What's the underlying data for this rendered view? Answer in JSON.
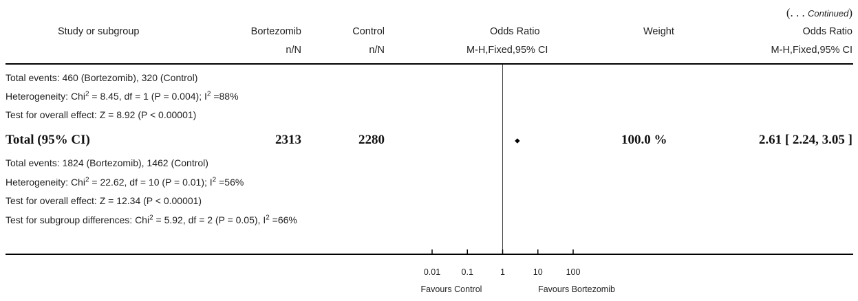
{
  "continued": {
    "open": "(. . . ",
    "text": "Continued",
    "close": ")"
  },
  "headers": {
    "study": "Study or subgroup",
    "bortezomib": "Bortezomib",
    "control": "Control",
    "odds_ratio": "Odds Ratio",
    "weight": "Weight",
    "odds_ratio_right": "Odds Ratio",
    "bortezomib_sub": "n/N",
    "control_sub": "n/N",
    "method": "M-H,Fixed,95% CI",
    "method_right": "M-H,Fixed,95% CI"
  },
  "subgroup_rows": {
    "total_events": "Total events: 460 (Bortezomib), 320 (Control)",
    "heterogeneity_pre": "Heterogeneity: Chi",
    "heterogeneity_sup": "2",
    "heterogeneity_mid": " = 8.45, df = 1 (P = 0.004); I",
    "heterogeneity_sup2": "2",
    "heterogeneity_post": " =88%",
    "overall_effect": "Test for overall effect: Z = 8.92 (P < 0.00001)"
  },
  "total_row": {
    "label": "Total (95% CI)",
    "bortezomib_n": "2313",
    "control_n": "2280",
    "weight": "100.0 %",
    "or_text": "2.61 [ 2.24, 3.05 ]"
  },
  "total_rows": {
    "total_events": "Total events: 1824 (Bortezomib), 1462 (Control)",
    "heterogeneity_pre": "Heterogeneity: Chi",
    "heterogeneity_sup": "2",
    "heterogeneity_mid": " = 22.62, df = 10 (P = 0.01); I",
    "heterogeneity_sup2": "2",
    "heterogeneity_post": " =56%",
    "overall_effect": "Test for overall effect: Z = 12.34 (P < 0.00001)",
    "subgroup_diff_pre": "Test for subgroup differences: Chi",
    "subgroup_diff_sup": "2",
    "subgroup_diff_mid": " = 5.92, df = 2 (P = 0.05), I",
    "subgroup_diff_sup2": "2",
    "subgroup_diff_post": " =66%"
  },
  "axis": {
    "favours_left": "Favours Control",
    "favours_right": "Favours Bortezomib"
  },
  "chart_data": {
    "type": "scatter",
    "subtype": "forest-plot",
    "x_scale": "log",
    "xlim": [
      0.01,
      100
    ],
    "x_ticks": [
      0.01,
      0.1,
      1,
      10,
      100
    ],
    "x_tick_labels": [
      "0.01",
      "0.1",
      "1",
      "10",
      "100"
    ],
    "reference_line": 1,
    "points": [
      {
        "label": "Total (95% CI)",
        "or": 2.61,
        "ci_low": 2.24,
        "ci_high": 3.05,
        "weight": 100.0,
        "marker": "diamond"
      }
    ]
  }
}
